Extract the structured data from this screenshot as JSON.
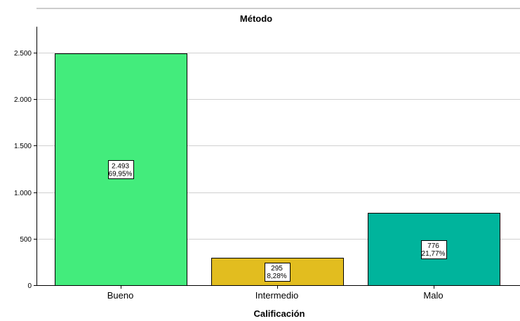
{
  "chart_data": {
    "type": "bar",
    "title": "Método",
    "xlabel": "Calificación",
    "ylabel": "",
    "categories": [
      "Bueno",
      "Intermedio",
      "Malo"
    ],
    "values": [
      2493,
      295,
      776
    ],
    "value_labels": [
      "2.493",
      "295",
      "776"
    ],
    "percent_labels": [
      "69,95%",
      "8,28%",
      "21,77%"
    ],
    "colors": [
      "#43ec7c",
      "#e2bd1f",
      "#00b49c"
    ],
    "ylim": [
      0,
      2780
    ],
    "yticks": [
      0,
      500,
      1000,
      1500,
      2000,
      2500
    ],
    "ytick_labels": [
      "0",
      "500",
      "1.000",
      "1.500",
      "2.000",
      "2.500"
    ],
    "grid": true,
    "legend": "none"
  }
}
